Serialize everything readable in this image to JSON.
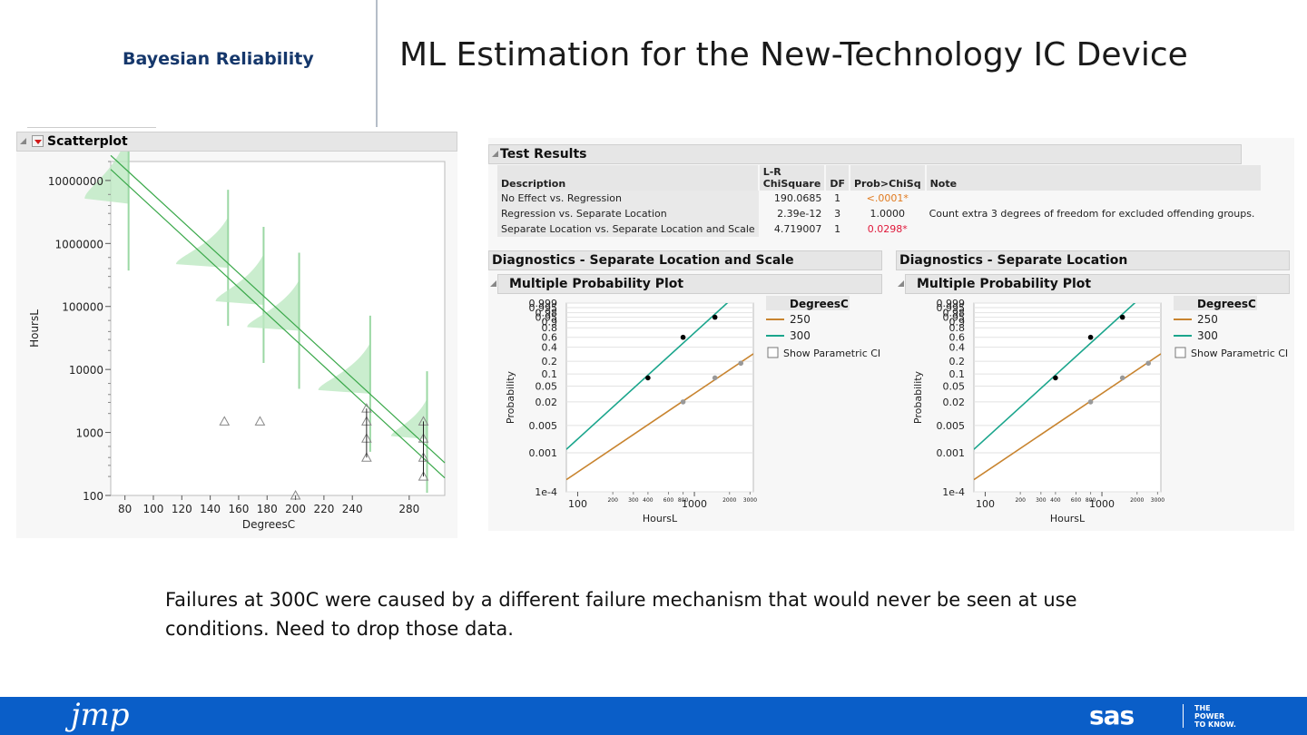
{
  "header": {
    "section": "Bayesian Reliability",
    "title": "ML Estimation for the New-Technology IC Device"
  },
  "scatterplot": {
    "title": "Scatterplot",
    "ylabel": "HoursL",
    "xlabel": "DegreesC",
    "y_major_ticks": [
      "10000000",
      "1000000",
      "100000",
      "10000",
      "1000",
      "100"
    ],
    "x_ticks": [
      "80",
      "100",
      "120",
      "140",
      "160",
      "180",
      "200",
      "220",
      "240",
      "280"
    ]
  },
  "chart_data": [
    {
      "type": "scatter",
      "title": "Scatterplot",
      "xlabel": "DegreesC",
      "ylabel": "HoursL",
      "y_scale": "log",
      "ylim": [
        100,
        20000000
      ],
      "xlim": [
        70,
        305
      ],
      "series": [
        {
          "values": [
            [
              150,
              1500
            ],
            [
              175,
              1500
            ],
            [
              200,
              100
            ],
            [
              250,
              2400
            ],
            [
              250,
              1500
            ],
            [
              250,
              800
            ],
            [
              250,
              400
            ],
            [
              290,
              1500
            ],
            [
              290,
              800
            ],
            [
              290,
              400
            ],
            [
              290,
              200
            ]
          ]
        }
      ],
      "regression_lines": [
        {
          "x": [
            70,
            305
          ],
          "y": [
            25000000,
            330
          ]
        },
        {
          "x": [
            70,
            305
          ],
          "y": [
            15000000,
            190
          ]
        }
      ]
    },
    {
      "type": "line",
      "title": "Multiple Probability Plot",
      "panel": "Diagnostics - Separate Location and Scale",
      "xlabel": "HoursL",
      "ylabel": "Probability",
      "legend_title": "DegreesC",
      "legend": "right",
      "series": [
        {
          "name": "250",
          "color": "#c8842f",
          "points": [
            [
              800,
              0.02
            ],
            [
              1500,
              0.08
            ],
            [
              2500,
              0.18
            ]
          ]
        },
        {
          "name": "300",
          "color": "#1aa58c",
          "points": [
            [
              400,
              0.08
            ],
            [
              800,
              0.6
            ],
            [
              1500,
              0.95
            ]
          ]
        }
      ]
    },
    {
      "type": "line",
      "title": "Multiple Probability Plot",
      "panel": "Diagnostics - Separate Location",
      "xlabel": "HoursL",
      "ylabel": "Probability",
      "legend_title": "DegreesC",
      "legend": "right",
      "series": [
        {
          "name": "250",
          "color": "#c8842f",
          "points": [
            [
              800,
              0.02
            ],
            [
              1500,
              0.08
            ],
            [
              2500,
              0.18
            ]
          ]
        },
        {
          "name": "300",
          "color": "#1aa58c",
          "points": [
            [
              400,
              0.08
            ],
            [
              800,
              0.6
            ],
            [
              1500,
              0.95
            ]
          ]
        }
      ]
    }
  ],
  "test_results": {
    "title": "Test Results",
    "headers": {
      "description": "Description",
      "lr_top": "L-R",
      "lr_bottom": "ChiSquare",
      "df": "DF",
      "prob": "Prob>ChiSq",
      "note": "Note"
    },
    "rows": [
      {
        "description": "No Effect vs. Regression",
        "chisq": "190.0685",
        "df": "1",
        "prob": "<.0001*",
        "note": ""
      },
      {
        "description": "Regression vs. Separate Location",
        "chisq": "2.39e-12",
        "df": "3",
        "prob": "1.0000",
        "note": "Count extra 3 degrees of freedom for excluded offending groups."
      },
      {
        "description": "Separate Location vs. Separate Location and Scale",
        "chisq": "4.719007",
        "df": "1",
        "prob": "0.0298*",
        "note": ""
      }
    ]
  },
  "diag_left": {
    "title": "Diagnostics - Separate Location and Scale",
    "plot_title": "Multiple Probability Plot"
  },
  "diag_right": {
    "title": "Diagnostics - Separate Location",
    "plot_title": "Multiple Probability Plot"
  },
  "prob_plot": {
    "prob_ticks": [
      "0.999",
      "0.995",
      "0.98",
      "0.95",
      "0.9",
      "0.8",
      "0.6",
      "0.4",
      "0.2",
      "0.1",
      "0.05",
      "0.02",
      "0.005",
      "0.001",
      "1e-4"
    ],
    "x_major_ticks": [
      "100",
      "1000"
    ],
    "x_minor_ticks": [
      "200",
      "300",
      "400",
      "600",
      "800",
      "2000",
      "3000"
    ],
    "legend_title": "DegreesC",
    "legend_items": [
      "250",
      "300"
    ],
    "checkbox_label": "Show Parametric CI",
    "xlabel": "HoursL",
    "ylabel": "Probability"
  },
  "caption": "Failures at 300C were caused by a different failure mechanism that would never be seen at use conditions. Need to drop those data.",
  "footer": {
    "left_logo": "jmp",
    "right_logo": "sas",
    "tagline": [
      "THE",
      "POWER",
      "TO KNOW."
    ]
  },
  "colors": {
    "accent_blue": "#0a5ec8",
    "green": "#3aa84a",
    "teal": "#1aa58c",
    "orange": "#c8842f"
  }
}
